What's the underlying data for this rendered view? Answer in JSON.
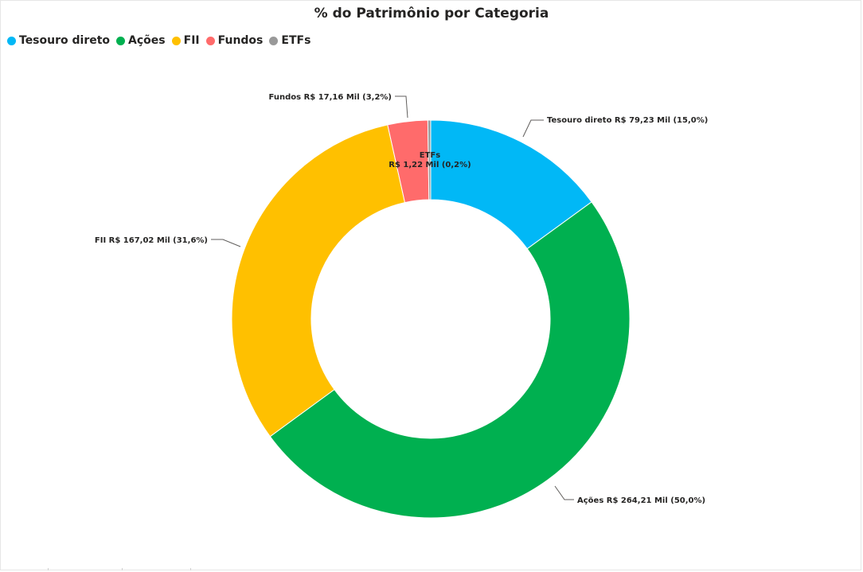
{
  "chart_data": {
    "type": "donut",
    "title": "% do Patrimônio por Categoria",
    "legend_position": "top-left",
    "series": [
      {
        "name": "Tesouro direto",
        "value": 79.23,
        "percent": 15.0,
        "label": "Tesouro direto R$ 79,23 Mil (15,0%)",
        "color": "#01B8F6"
      },
      {
        "name": "Ações",
        "value": 264.21,
        "percent": 50.0,
        "label": "Ações R$ 264,21 Mil (50,0%)",
        "color": "#00B050"
      },
      {
        "name": "FII",
        "value": 167.02,
        "percent": 31.6,
        "label": "FII R$ 167,02 Mil (31,6%)",
        "color": "#FFC000"
      },
      {
        "name": "Fundos",
        "value": 17.16,
        "percent": 3.2,
        "label": "Fundos R$ 17,16 Mil (3,2%)",
        "color": "#FF6B6B"
      },
      {
        "name": "ETFs",
        "value": 1.22,
        "percent": 0.2,
        "label_line1": "ETFs",
        "label_line2": "R$ 1,22 Mil (0,2%)",
        "color": "#999999"
      }
    ]
  }
}
